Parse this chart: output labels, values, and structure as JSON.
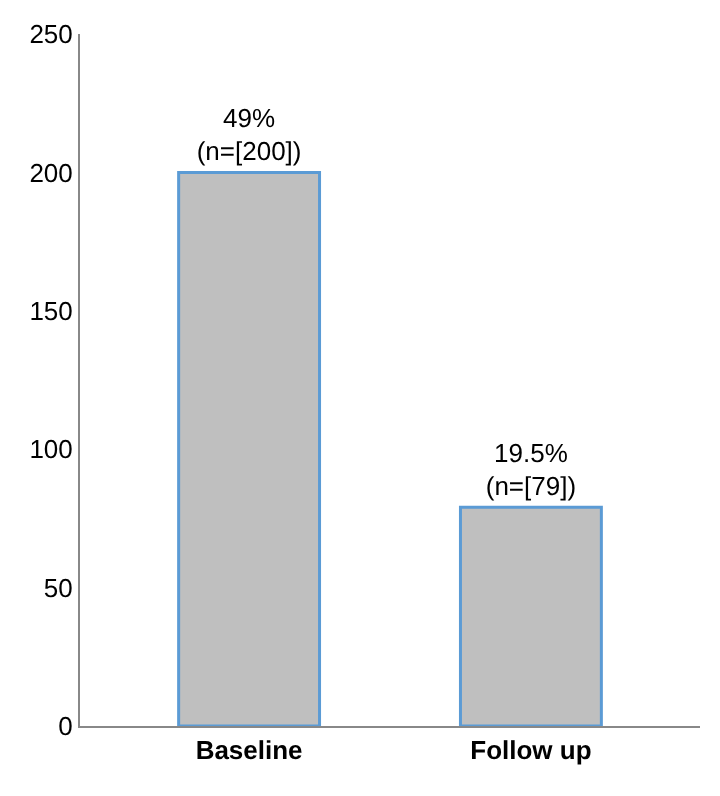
{
  "chart_data": {
    "type": "bar",
    "categories": [
      "Baseline",
      "Follow up"
    ],
    "values": [
      200,
      79
    ],
    "value_labels": [
      "49%\n(n=[200])",
      "19.5%\n(n=[79])"
    ],
    "color": "#bfbfbf",
    "ylim": [
      0,
      250
    ],
    "yticks": [
      0,
      50,
      100,
      150,
      200,
      250
    ]
  }
}
